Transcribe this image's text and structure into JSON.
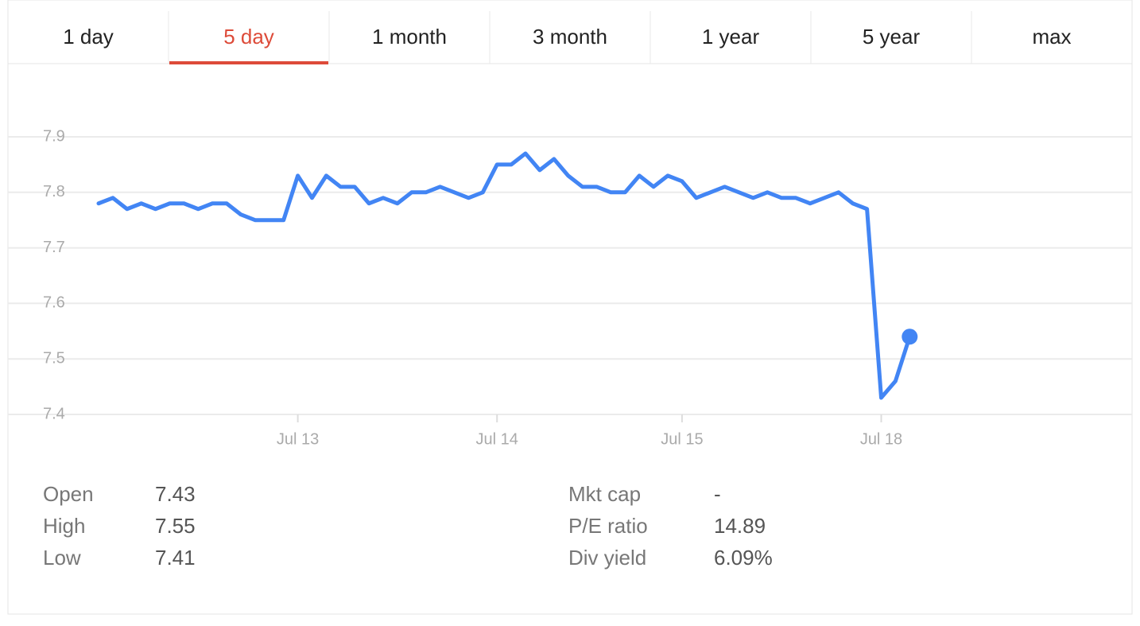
{
  "tabs": {
    "items": [
      "1 day",
      "5 day",
      "1 month",
      "3 month",
      "1 year",
      "5 year",
      "max"
    ],
    "active": 1
  },
  "chart_data": {
    "type": "line",
    "categories": [
      null,
      null,
      null,
      null,
      null,
      null,
      null,
      null,
      null,
      null,
      null,
      null,
      null,
      null,
      "Jul 13",
      null,
      null,
      null,
      null,
      null,
      null,
      null,
      null,
      null,
      null,
      null,
      null,
      null,
      "Jul 14",
      null,
      null,
      null,
      null,
      null,
      null,
      null,
      null,
      null,
      null,
      null,
      null,
      "Jul 15",
      null,
      null,
      null,
      null,
      null,
      null,
      null,
      null,
      null,
      null,
      null,
      null,
      null,
      "Jul 18",
      null,
      null
    ],
    "series": [
      {
        "color": "#4285f4",
        "values": [
          7.78,
          7.79,
          7.77,
          7.78,
          7.77,
          7.78,
          7.78,
          7.77,
          7.78,
          7.78,
          7.76,
          7.75,
          7.75,
          7.75,
          7.83,
          7.79,
          7.83,
          7.81,
          7.81,
          7.78,
          7.79,
          7.78,
          7.8,
          7.8,
          7.81,
          7.8,
          7.79,
          7.8,
          7.85,
          7.85,
          7.87,
          7.84,
          7.86,
          7.83,
          7.81,
          7.81,
          7.8,
          7.8,
          7.83,
          7.81,
          7.83,
          7.82,
          7.79,
          7.8,
          7.81,
          7.8,
          7.79,
          7.8,
          7.79,
          7.79,
          7.78,
          7.79,
          7.8,
          7.78,
          7.77,
          7.43,
          7.46,
          7.54
        ]
      }
    ],
    "ylim": [
      7.4,
      7.9
    ],
    "yticks": [
      {
        "value": 7.4,
        "label": "7.4"
      },
      7.5,
      7.6,
      7.7,
      7.8,
      7.9
    ],
    "grid": true
  },
  "stats": {
    "left": [
      [
        "Open",
        "7.43"
      ],
      [
        "High",
        "7.55"
      ],
      [
        "Low",
        "7.41"
      ]
    ],
    "right": [
      [
        "Mkt cap",
        "-"
      ],
      [
        "P/E ratio",
        "14.89"
      ],
      [
        "Div yield",
        "6.09%"
      ]
    ]
  }
}
